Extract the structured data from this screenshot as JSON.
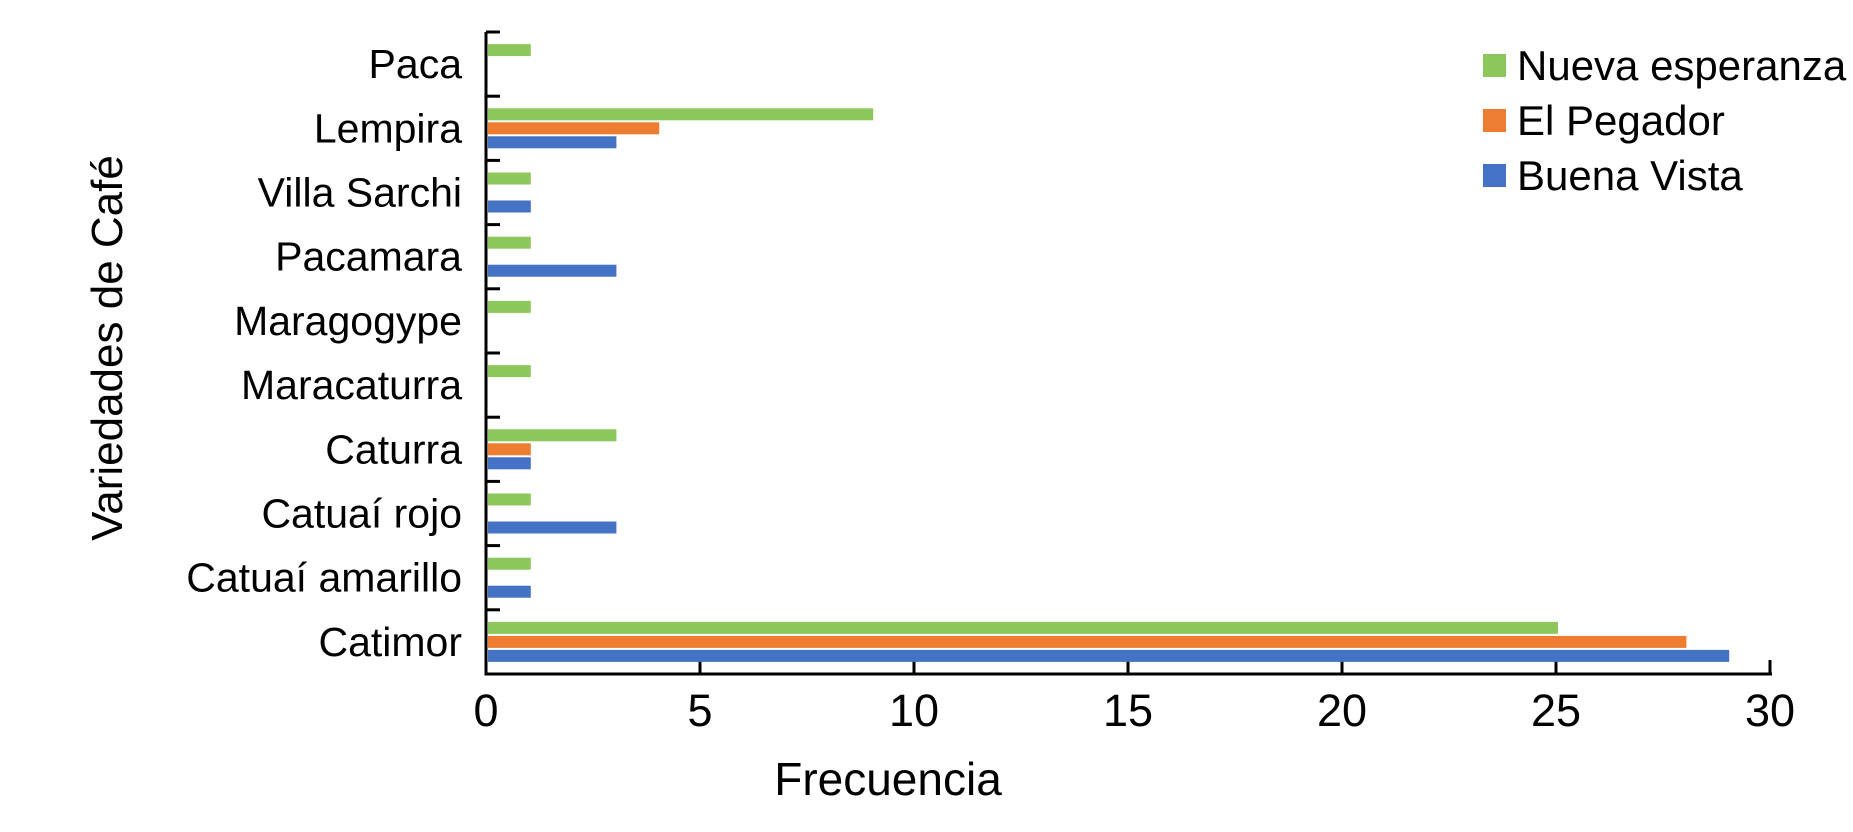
{
  "chart_data": {
    "type": "bar",
    "orientation": "horizontal",
    "title": "",
    "xlabel": "Frecuencia",
    "ylabel": "Variedades de Café",
    "xlim": [
      0,
      30
    ],
    "xticks": [
      "0",
      "5",
      "10",
      "15",
      "20",
      "25",
      "30"
    ],
    "grid": false,
    "legend_position": "top-right",
    "categories": [
      "Paca",
      "Lempira",
      "Villa Sarchi",
      "Pacamara",
      "Maragogype",
      "Maracaturra",
      "Caturra",
      "Catuaí rojo",
      "Catuaí amarillo",
      "Catimor"
    ],
    "series": [
      {
        "name": "Nueva esperanza",
        "color": "#8DC75C",
        "values": [
          1,
          9,
          1,
          1,
          1,
          1,
          3,
          1,
          1,
          25
        ]
      },
      {
        "name": "El Pegador",
        "color": "#ED7D31",
        "values": [
          0,
          4,
          0,
          0,
          0,
          0,
          1,
          0,
          0,
          28
        ]
      },
      {
        "name": "Buena Vista",
        "color": "#4472C4",
        "values": [
          0,
          3,
          1,
          3,
          0,
          0,
          1,
          3,
          1,
          29
        ]
      }
    ],
    "axis_color": "#000000",
    "text_color": "#000000",
    "background": "#FFFFFF"
  }
}
